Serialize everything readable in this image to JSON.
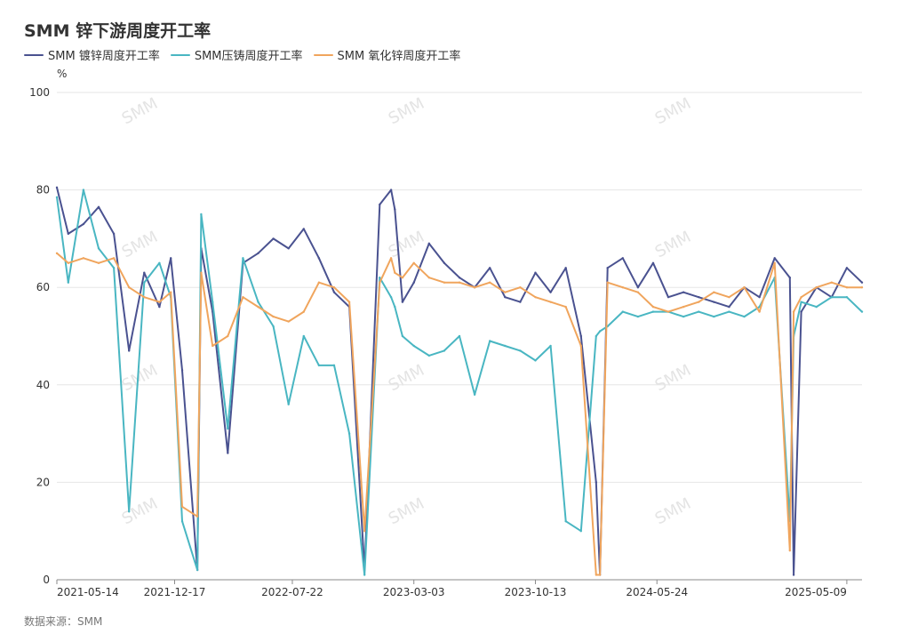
{
  "title": "SMM 锌下游周度开工率",
  "unit": "%",
  "source": "数据来源：SMM",
  "watermark": "SMM",
  "chart_data": {
    "type": "line",
    "title": "SMM 锌下游周度开工率",
    "ylabel": "%",
    "ylim": [
      0,
      100
    ],
    "yticks": [
      0,
      20,
      40,
      60,
      80,
      100
    ],
    "grid": true,
    "legend_position": "top-left",
    "x_tick_labels": [
      "2021-05-14",
      "2021-12-17",
      "2022-07-22",
      "2023-03-03",
      "2023-10-13",
      "2024-05-24",
      "2025-05-09"
    ],
    "series": [
      {
        "name": "SMM 镀锌周度开工率",
        "color": "#4a5290",
        "x": [
          "2021-05-14",
          "2021-06-04",
          "2021-07-02",
          "2021-07-30",
          "2021-08-27",
          "2021-09-24",
          "2021-10-22",
          "2021-11-19",
          "2021-12-10",
          "2021-12-31",
          "2022-01-28",
          "2022-02-04",
          "2022-02-25",
          "2022-03-25",
          "2022-04-22",
          "2022-05-20",
          "2022-06-17",
          "2022-07-15",
          "2022-08-12",
          "2022-09-09",
          "2022-10-07",
          "2022-11-04",
          "2022-12-02",
          "2022-12-30",
          "2023-01-20",
          "2023-01-27",
          "2023-02-10",
          "2023-03-03",
          "2023-03-31",
          "2023-04-28",
          "2023-05-26",
          "2023-06-23",
          "2023-07-21",
          "2023-08-18",
          "2023-09-15",
          "2023-10-13",
          "2023-11-10",
          "2023-12-08",
          "2024-01-05",
          "2024-02-02",
          "2024-02-09",
          "2024-02-23",
          "2024-03-22",
          "2024-04-19",
          "2024-05-17",
          "2024-06-14",
          "2024-07-12",
          "2024-08-09",
          "2024-09-06",
          "2024-10-04",
          "2024-11-01",
          "2024-11-29",
          "2024-12-27",
          "2025-01-24",
          "2025-01-31",
          "2025-02-14",
          "2025-03-14",
          "2025-04-11",
          "2025-05-09",
          "2025-06-06"
        ],
        "values": [
          80.5,
          71,
          73,
          76.5,
          71,
          47,
          63,
          56,
          66,
          43,
          2,
          68,
          55,
          26,
          65,
          67,
          70,
          68,
          72,
          66,
          59,
          56,
          2,
          77,
          80,
          76,
          57,
          61,
          69,
          65,
          62,
          60,
          64,
          58,
          57,
          63,
          59,
          64,
          50,
          20,
          1,
          64,
          66,
          60,
          65,
          58,
          59,
          58,
          57,
          56,
          60,
          58,
          66,
          62,
          1,
          55,
          60,
          58,
          64,
          61
        ]
      },
      {
        "name": "SMM压铸周度开工率",
        "color": "#49b6c2",
        "x": [
          "2021-05-14",
          "2021-06-04",
          "2021-07-02",
          "2021-07-30",
          "2021-08-27",
          "2021-09-24",
          "2021-10-22",
          "2021-11-19",
          "2021-12-10",
          "2021-12-31",
          "2022-01-28",
          "2022-02-04",
          "2022-02-25",
          "2022-03-25",
          "2022-04-22",
          "2022-05-20",
          "2022-06-17",
          "2022-07-15",
          "2022-08-12",
          "2022-09-09",
          "2022-10-07",
          "2022-11-04",
          "2022-12-02",
          "2022-12-30",
          "2023-01-20",
          "2023-01-27",
          "2023-02-10",
          "2023-03-03",
          "2023-03-31",
          "2023-04-28",
          "2023-05-26",
          "2023-06-23",
          "2023-07-21",
          "2023-08-18",
          "2023-09-15",
          "2023-10-13",
          "2023-11-10",
          "2023-12-08",
          "2024-01-05",
          "2024-02-02",
          "2024-02-09",
          "2024-02-23",
          "2024-03-22",
          "2024-04-19",
          "2024-05-17",
          "2024-06-14",
          "2024-07-12",
          "2024-08-09",
          "2024-09-06",
          "2024-10-04",
          "2024-11-01",
          "2024-11-29",
          "2024-12-27",
          "2025-01-24",
          "2025-01-31",
          "2025-02-14",
          "2025-03-14",
          "2025-04-11",
          "2025-05-09",
          "2025-06-06"
        ],
        "values": [
          78.5,
          61,
          80,
          68,
          64,
          14,
          61,
          65,
          58,
          12,
          2,
          75,
          57,
          31,
          66,
          57,
          52,
          36,
          50,
          44,
          44,
          30,
          1,
          62,
          58,
          56,
          50,
          48,
          46,
          47,
          50,
          38,
          49,
          48,
          47,
          45,
          48,
          12,
          10,
          50,
          51,
          52,
          55,
          54,
          55,
          55,
          54,
          55,
          54,
          55,
          54,
          56,
          62,
          12,
          50,
          57,
          56,
          58,
          58,
          55
        ]
      },
      {
        "name": "SMM 氧化锌周度开工率",
        "color": "#f0a55d",
        "x": [
          "2021-05-14",
          "2021-06-04",
          "2021-07-02",
          "2021-07-30",
          "2021-08-27",
          "2021-09-24",
          "2021-10-22",
          "2021-11-19",
          "2021-12-10",
          "2021-12-31",
          "2022-01-28",
          "2022-02-04",
          "2022-02-25",
          "2022-03-25",
          "2022-04-22",
          "2022-05-20",
          "2022-06-17",
          "2022-07-15",
          "2022-08-12",
          "2022-09-09",
          "2022-10-07",
          "2022-11-04",
          "2022-12-02",
          "2022-12-30",
          "2023-01-20",
          "2023-01-27",
          "2023-02-10",
          "2023-03-03",
          "2023-03-31",
          "2023-04-28",
          "2023-05-26",
          "2023-06-23",
          "2023-07-21",
          "2023-08-18",
          "2023-09-15",
          "2023-10-13",
          "2023-11-10",
          "2023-12-08",
          "2024-01-05",
          "2024-02-02",
          "2024-02-09",
          "2024-02-23",
          "2024-03-22",
          "2024-04-19",
          "2024-05-17",
          "2024-06-14",
          "2024-07-12",
          "2024-08-09",
          "2024-09-06",
          "2024-10-04",
          "2024-11-01",
          "2024-11-29",
          "2024-12-27",
          "2025-01-24",
          "2025-01-31",
          "2025-02-14",
          "2025-03-14",
          "2025-04-11",
          "2025-05-09",
          "2025-06-06"
        ],
        "values": [
          67,
          65,
          66,
          65,
          66,
          60,
          58,
          57,
          59,
          15,
          13,
          63,
          48,
          50,
          58,
          56,
          54,
          53,
          55,
          61,
          60,
          57,
          10,
          61,
          66,
          63,
          62,
          65,
          62,
          61,
          61,
          60,
          61,
          59,
          60,
          58,
          57,
          56,
          48,
          1,
          1,
          61,
          60,
          59,
          56,
          55,
          56,
          57,
          59,
          58,
          60,
          55,
          65,
          6,
          55,
          58,
          60,
          61,
          60,
          60
        ]
      }
    ]
  }
}
